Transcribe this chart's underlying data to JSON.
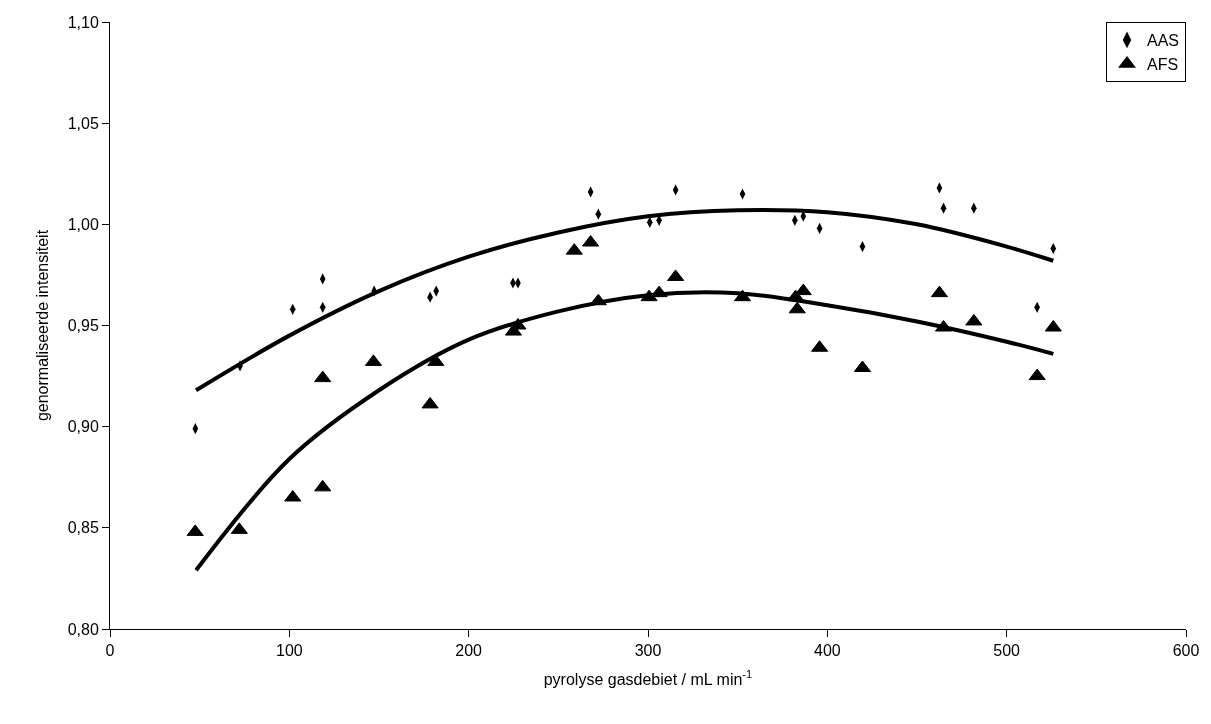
{
  "chart_data": {
    "type": "scatter",
    "xlabel": "pyrolyse gasdebiet / mL min$^{-1}$",
    "ylabel": "genormaliseerde intensiteit",
    "xlim": [
      0,
      600
    ],
    "xticks": [
      0,
      100,
      200,
      300,
      400,
      500,
      600
    ],
    "ylim": [
      0.8,
      1.1
    ],
    "yticks": [
      {
        "value": 0.8,
        "label": "0,80"
      },
      {
        "value": 0.85,
        "label": "0,85"
      },
      {
        "value": 0.9,
        "label": "0,90"
      },
      {
        "value": 0.95,
        "label": "0,95"
      },
      {
        "value": 1.0,
        "label": "1,00"
      },
      {
        "value": 1.05,
        "label": "1,05"
      },
      {
        "value": 1.1,
        "label": "1,10"
      }
    ],
    "legend": "top right",
    "series": [
      {
        "name": "AAS",
        "marker": "diamond",
        "color": "#000000",
        "x": [
          47.6,
          72.5,
          101.9,
          118.6,
          118.6,
          147.3,
          178.5,
          181.9,
          224.7,
          227.5,
          268,
          272.3,
          301,
          306.2,
          315.4,
          352.7,
          381.9,
          386.6,
          395.7,
          419.6,
          462.5,
          464.8,
          481.7,
          517,
          526
        ],
        "values": [
          0.899,
          0.93,
          0.958,
          0.973,
          0.959,
          0.967,
          0.964,
          0.967,
          0.971,
          0.971,
          1.016,
          1.005,
          1.001,
          1.002,
          1.017,
          1.015,
          1.002,
          1.004,
          0.998,
          0.989,
          1.018,
          1.008,
          1.008,
          0.959,
          0.988
        ]
      },
      {
        "name": "AFS",
        "marker": "triangle",
        "color": "#000000",
        "x": [
          47.5,
          72.1,
          101.9,
          118.6,
          118.6,
          146.9,
          178.5,
          181.7,
          225,
          227.5,
          258.9,
          268,
          272.3,
          300.6,
          306.2,
          315.4,
          352.7,
          382.3,
          383.2,
          386.6,
          395.7,
          419.6,
          462.5,
          464.8,
          481.7,
          517,
          526
        ],
        "values": [
          0.848,
          0.849,
          0.865,
          0.87,
          0.924,
          0.932,
          0.911,
          0.932,
          0.947,
          0.95,
          0.987,
          0.991,
          0.962,
          0.964,
          0.966,
          0.974,
          0.964,
          0.964,
          0.958,
          0.967,
          0.939,
          0.929,
          0.966,
          0.949,
          0.952,
          0.925,
          0.949
        ]
      },
      {
        "type": "line",
        "marker": "none",
        "color": "#000000",
        "x": [
          48,
          100,
          150,
          200,
          250,
          300,
          350,
          400,
          450,
          500,
          526
        ],
        "values": [
          0.918,
          0.945,
          0.967,
          0.984,
          0.996,
          1.004,
          1.007,
          1.006,
          1.0,
          0.989,
          0.982
        ]
      },
      {
        "type": "line",
        "marker": "none",
        "color": "#000000",
        "x": [
          48,
          100,
          150,
          200,
          250,
          300,
          350,
          400,
          450,
          500,
          526
        ],
        "values": [
          0.829,
          0.884,
          0.918,
          0.943,
          0.957,
          0.965,
          0.966,
          0.96,
          0.952,
          0.942,
          0.936
        ]
      }
    ]
  }
}
